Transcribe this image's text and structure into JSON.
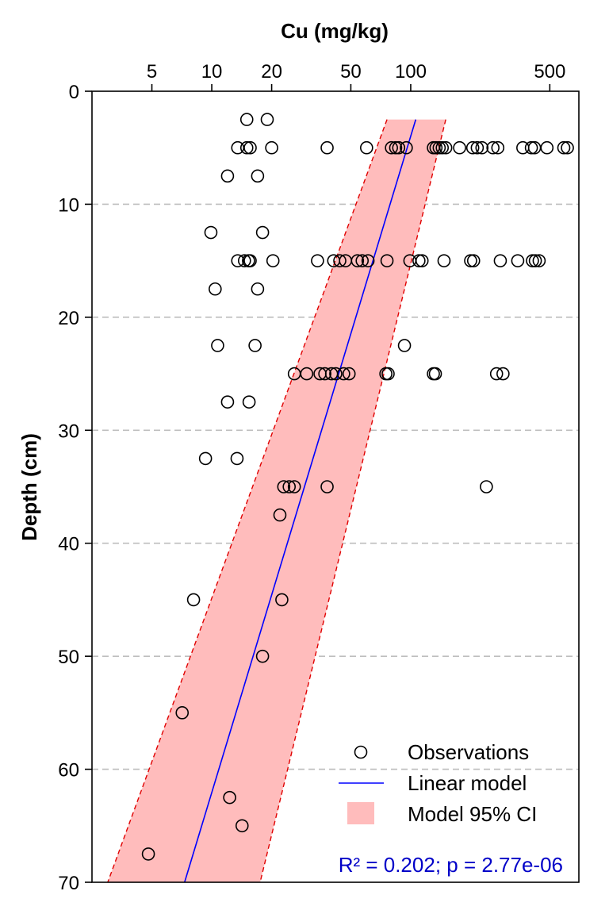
{
  "chart_data": {
    "type": "scatter",
    "title": "",
    "xlabel": "Cu (mg/kg)",
    "ylabel": "Depth (cm)",
    "x_scale": "log10",
    "xlim": [
      2.5,
      700
    ],
    "ylim": [
      0,
      70
    ],
    "y_reversed": true,
    "x_ticks": [
      5,
      10,
      20,
      50,
      100,
      500
    ],
    "y_ticks": [
      0,
      10,
      20,
      30,
      40,
      50,
      60,
      70
    ],
    "grid": "horizontal dashed",
    "observations": [
      {
        "depth": 2.5,
        "cu": [
          15,
          19
        ]
      },
      {
        "depth": 5,
        "cu": [
          13.5,
          15,
          15.6,
          20,
          38,
          60,
          80,
          84,
          87,
          95,
          130,
          134,
          139,
          144,
          150,
          176,
          205,
          216,
          228,
          259,
          274,
          366,
          404,
          419,
          484,
          588,
          613
        ]
      },
      {
        "depth": 7.5,
        "cu": [
          12,
          17
        ]
      },
      {
        "depth": 12.5,
        "cu": [
          9.9,
          18
        ]
      },
      {
        "depth": 15,
        "cu": [
          13.5,
          14.6,
          15.3,
          15.6,
          20.3,
          34,
          41,
          44,
          47,
          54,
          57,
          61,
          76,
          99,
          110,
          114,
          147,
          200,
          207,
          282,
          345,
          409,
          423,
          442
        ]
      },
      {
        "depth": 17.5,
        "cu": [
          10.4,
          17
        ]
      },
      {
        "depth": 22.5,
        "cu": [
          10.7,
          16.5,
          93
        ]
      },
      {
        "depth": 25,
        "cu": [
          26,
          30,
          35,
          37,
          40,
          42,
          46,
          49,
          75,
          77,
          130,
          133,
          270,
          291
        ]
      },
      {
        "depth": 27.5,
        "cu": [
          12,
          15.4
        ]
      },
      {
        "depth": 32.5,
        "cu": [
          9.3,
          13.4
        ]
      },
      {
        "depth": 35,
        "cu": [
          23,
          24.5,
          26,
          38,
          240
        ]
      },
      {
        "depth": 37.5,
        "cu": [
          22
        ]
      },
      {
        "depth": 45,
        "cu": [
          8.1,
          22.5
        ]
      },
      {
        "depth": 50,
        "cu": [
          18
        ]
      },
      {
        "depth": 55,
        "cu": [
          7.1
        ]
      },
      {
        "depth": 62.5,
        "cu": [
          12.3
        ]
      },
      {
        "depth": 65,
        "cu": [
          14.2
        ]
      },
      {
        "depth": 67.5,
        "cu": [
          4.8
        ]
      }
    ],
    "model": {
      "type": "line",
      "name": "Linear model",
      "color": "#0000ff",
      "depth": [
        2.5,
        70
      ],
      "cu": [
        106,
        7.3
      ]
    },
    "ci": {
      "name": "Model 95% CI",
      "fill": "#ffbcbc",
      "edge": "#e00000",
      "depth": [
        2.5,
        70
      ],
      "lower": [
        76,
        3.0
      ],
      "upper": [
        150,
        17.5
      ]
    },
    "legend": {
      "placement": "bottom-right",
      "entries": [
        "Observations",
        "Linear model",
        "Model 95% CI"
      ]
    },
    "stats_text": "R² = 0.202; p = 2.77e-06"
  }
}
